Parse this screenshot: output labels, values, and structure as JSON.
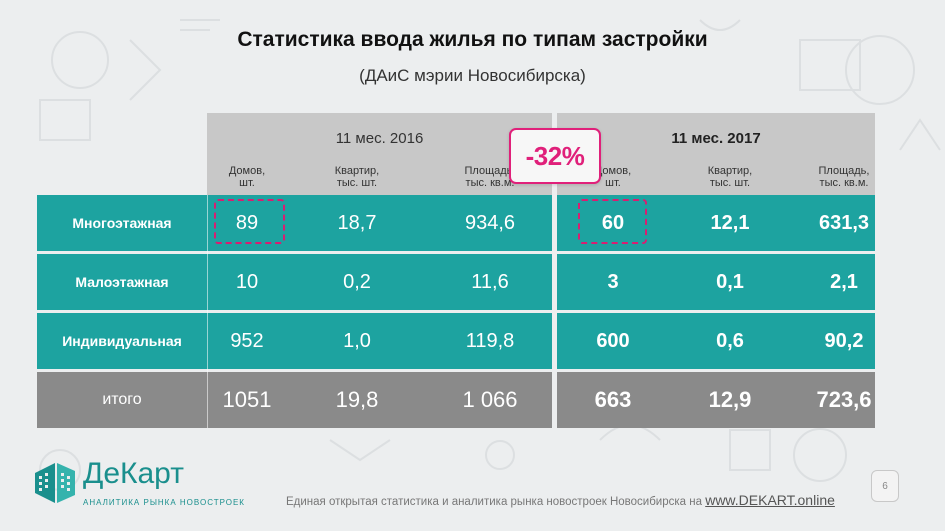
{
  "title": "Статистика ввода жилья по типам застройки",
  "subtitle": "(ДАиС мэрии Новосибирска)",
  "periods": {
    "p2016": "11 мес. 2016",
    "p2017": "11 мес. 2017"
  },
  "columns": {
    "p2016": [
      {
        "l1": "Домов,",
        "l2": "шт."
      },
      {
        "l1": "Квартир,",
        "l2": "тыс. шт."
      },
      {
        "l1": "Площадь,",
        "l2": "тыс. кв.м."
      }
    ],
    "p2017": [
      {
        "l1": "Домов,",
        "l2": "шт."
      },
      {
        "l1": "Квартир,",
        "l2": "тыс. шт."
      },
      {
        "l1": "Площадь,",
        "l2": "тыс. кв.м."
      }
    ]
  },
  "rows": [
    {
      "label": "Многоэтажная",
      "v2016": [
        "89",
        "18,7",
        "934,6"
      ],
      "v2017": [
        "60",
        "12,1",
        "631,3"
      ]
    },
    {
      "label": "Малоэтажная",
      "v2016": [
        "10",
        "0,2",
        "11,6"
      ],
      "v2017": [
        "3",
        "0,1",
        "2,1"
      ]
    },
    {
      "label": "Индивидуальная",
      "v2016": [
        "952",
        "1,0",
        "119,8"
      ],
      "v2017": [
        "600",
        "0,6",
        "90,2"
      ]
    },
    {
      "label": "итого",
      "v2016": [
        "1051",
        "19,8",
        "1 066"
      ],
      "v2017": [
        "663",
        "12,9",
        "723,6"
      ]
    }
  ],
  "badge": "-32%",
  "logo": {
    "name": "ДеКарт",
    "tagline": "АНАЛИТИКА РЫНКА НОВОСТРОЕК"
  },
  "footer": {
    "text": "Единая открытая статистика и аналитика рынка новостроек Новосибирска на ",
    "link": "www.DEKART.online"
  },
  "page_number": "6",
  "colors": {
    "teal": "#1da3a0",
    "total_gray": "#8a8a8a",
    "header_gray": "#c8c8c8",
    "accent_pink": "#e0207a"
  }
}
